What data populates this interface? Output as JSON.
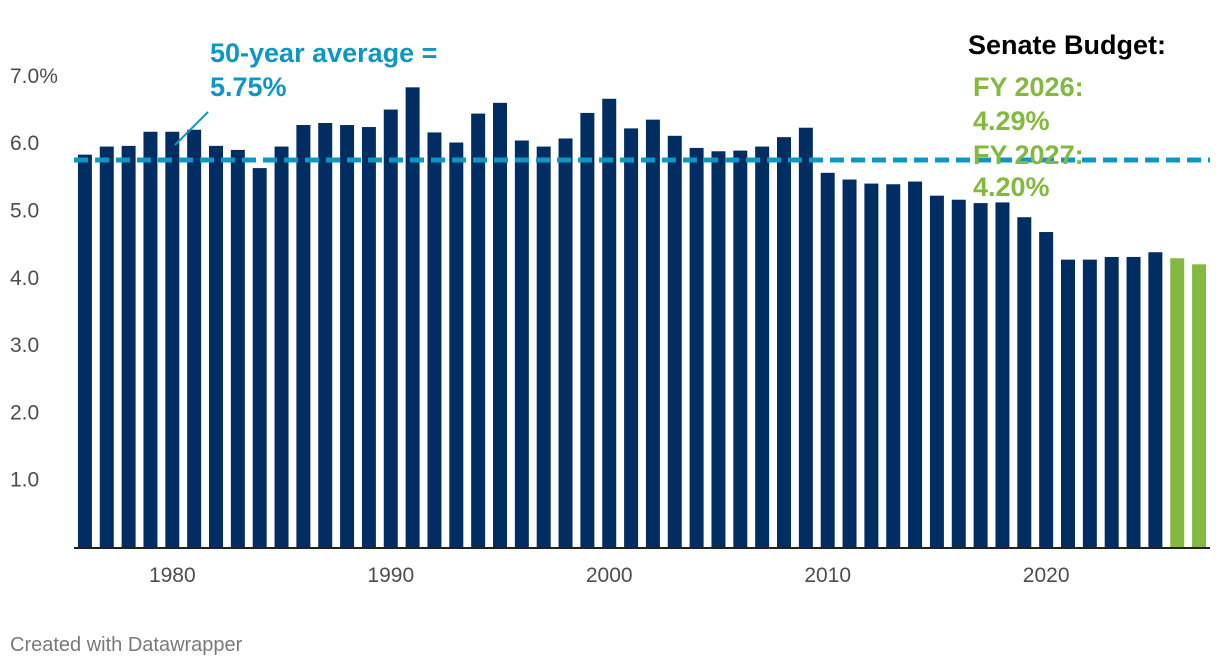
{
  "chart_data": {
    "type": "bar",
    "x": [
      1976,
      1977,
      1978,
      1979,
      1980,
      1981,
      1982,
      1983,
      1984,
      1985,
      1986,
      1987,
      1988,
      1989,
      1990,
      1991,
      1992,
      1993,
      1994,
      1995,
      1996,
      1997,
      1998,
      1999,
      2000,
      2001,
      2002,
      2003,
      2004,
      2005,
      2006,
      2007,
      2008,
      2009,
      2010,
      2011,
      2012,
      2013,
      2014,
      2015,
      2016,
      2017,
      2018,
      2019,
      2020,
      2021,
      2022,
      2023,
      2024,
      2025,
      2026,
      2027
    ],
    "values": [
      5.83,
      5.95,
      5.96,
      6.17,
      6.17,
      6.2,
      5.96,
      5.9,
      5.63,
      5.95,
      6.27,
      6.3,
      6.27,
      6.24,
      6.5,
      6.83,
      6.16,
      6.01,
      6.44,
      6.6,
      6.04,
      5.95,
      6.07,
      6.45,
      6.66,
      6.22,
      6.35,
      6.11,
      5.93,
      5.88,
      5.89,
      5.95,
      6.09,
      6.23,
      5.56,
      5.46,
      5.4,
      5.39,
      5.43,
      5.22,
      5.16,
      5.11,
      5.12,
      4.9,
      4.68,
      4.27,
      4.27,
      4.31,
      4.31,
      4.38,
      4.29,
      4.2
    ],
    "series_colors": [
      "#002d62",
      "#002d62",
      "#002d62",
      "#002d62",
      "#002d62",
      "#002d62",
      "#002d62",
      "#002d62",
      "#002d62",
      "#002d62",
      "#002d62",
      "#002d62",
      "#002d62",
      "#002d62",
      "#002d62",
      "#002d62",
      "#002d62",
      "#002d62",
      "#002d62",
      "#002d62",
      "#002d62",
      "#002d62",
      "#002d62",
      "#002d62",
      "#002d62",
      "#002d62",
      "#002d62",
      "#002d62",
      "#002d62",
      "#002d62",
      "#002d62",
      "#002d62",
      "#002d62",
      "#002d62",
      "#002d62",
      "#002d62",
      "#002d62",
      "#002d62",
      "#002d62",
      "#002d62",
      "#002d62",
      "#002d62",
      "#002d62",
      "#002d62",
      "#002d62",
      "#002d62",
      "#002d62",
      "#002d62",
      "#002d62",
      "#002d62",
      "#82b93e",
      "#82b93e"
    ],
    "x_ticks": [
      1980,
      1990,
      2000,
      2010,
      2020
    ],
    "x_tick_labels": [
      "1980",
      "1990",
      "2000",
      "2010",
      "2020"
    ],
    "y_ticks": [
      1.0,
      2.0,
      3.0,
      4.0,
      5.0,
      6.0,
      7.0
    ],
    "y_tick_labels": [
      "1.0",
      "2.0",
      "3.0",
      "4.0",
      "5.0",
      "6.0",
      "7.0%"
    ],
    "ylim": [
      0,
      7.5
    ],
    "xlim": [
      1975.5,
      2027.5
    ],
    "grid": false,
    "reference_line": {
      "value": 5.75,
      "color": "#0e97c4",
      "style": "dashed"
    },
    "annotations": {
      "average_line1": "50-year average =",
      "average_line2": "5.75%",
      "average_color": "#0e97c4",
      "senate_title": "Senate Budget:",
      "fy2026_line1": "FY 2026:",
      "fy2026_line2": "4.29%",
      "fy2027_line1": "FY 2027:",
      "fy2027_line2": "4.20%",
      "senate_color": "#82b93e"
    }
  },
  "credit": "Created with Datawrapper"
}
